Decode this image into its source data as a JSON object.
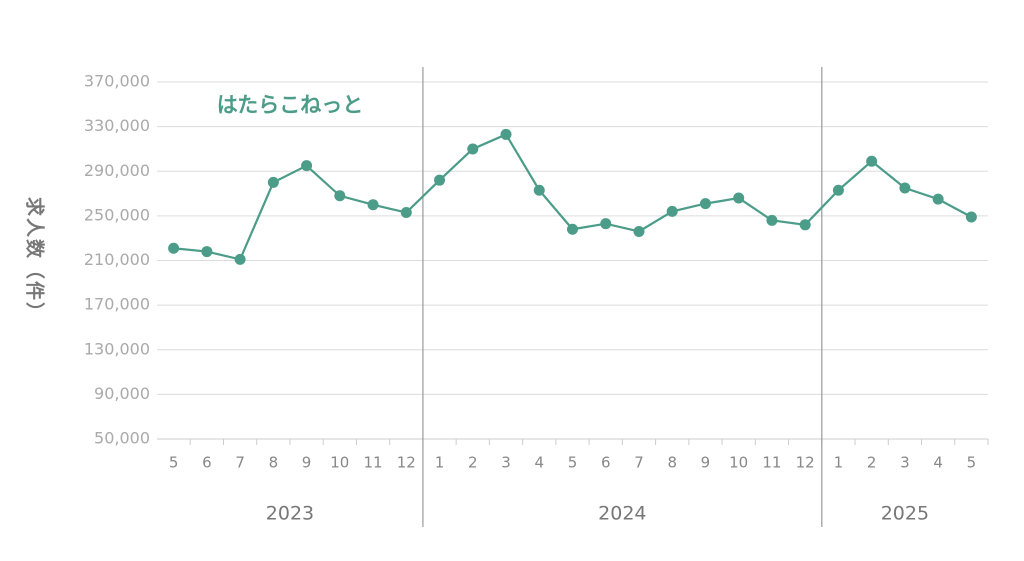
{
  "chart_data": {
    "type": "line",
    "title": "はたらこねっと",
    "y_label": "求人数（件）",
    "color": "#4b9c88",
    "grid": true,
    "ylim": [
      50000,
      370000
    ],
    "yticks": [
      {
        "value": 50000,
        "label": "50,000"
      },
      {
        "value": 90000,
        "label": "90,000"
      },
      {
        "value": 130000,
        "label": "130,000"
      },
      {
        "value": 170000,
        "label": "170,000"
      },
      {
        "value": 210000,
        "label": "210,000"
      },
      {
        "value": 250000,
        "label": "250,000"
      },
      {
        "value": 290000,
        "label": "290,000"
      },
      {
        "value": 330000,
        "label": "330,000"
      },
      {
        "value": 370000,
        "label": "370,000"
      }
    ],
    "groups": [
      {
        "label": "2023",
        "categories": [
          "5",
          "6",
          "7",
          "8",
          "9",
          "10",
          "11",
          "12"
        ],
        "values": [
          221000,
          218000,
          211000,
          280000,
          295000,
          268000,
          260000,
          253000
        ]
      },
      {
        "label": "2024",
        "categories": [
          "1",
          "2",
          "3",
          "4",
          "5",
          "6",
          "7",
          "8",
          "9",
          "10",
          "11",
          "12"
        ],
        "values": [
          282000,
          310000,
          323000,
          273000,
          238000,
          243000,
          236000,
          254000,
          261000,
          266000,
          246000,
          242000
        ]
      },
      {
        "label": "2025",
        "categories": [
          "1",
          "2",
          "3",
          "4",
          "5"
        ],
        "values": [
          273000,
          299000,
          275000,
          265000,
          249000
        ]
      }
    ]
  }
}
